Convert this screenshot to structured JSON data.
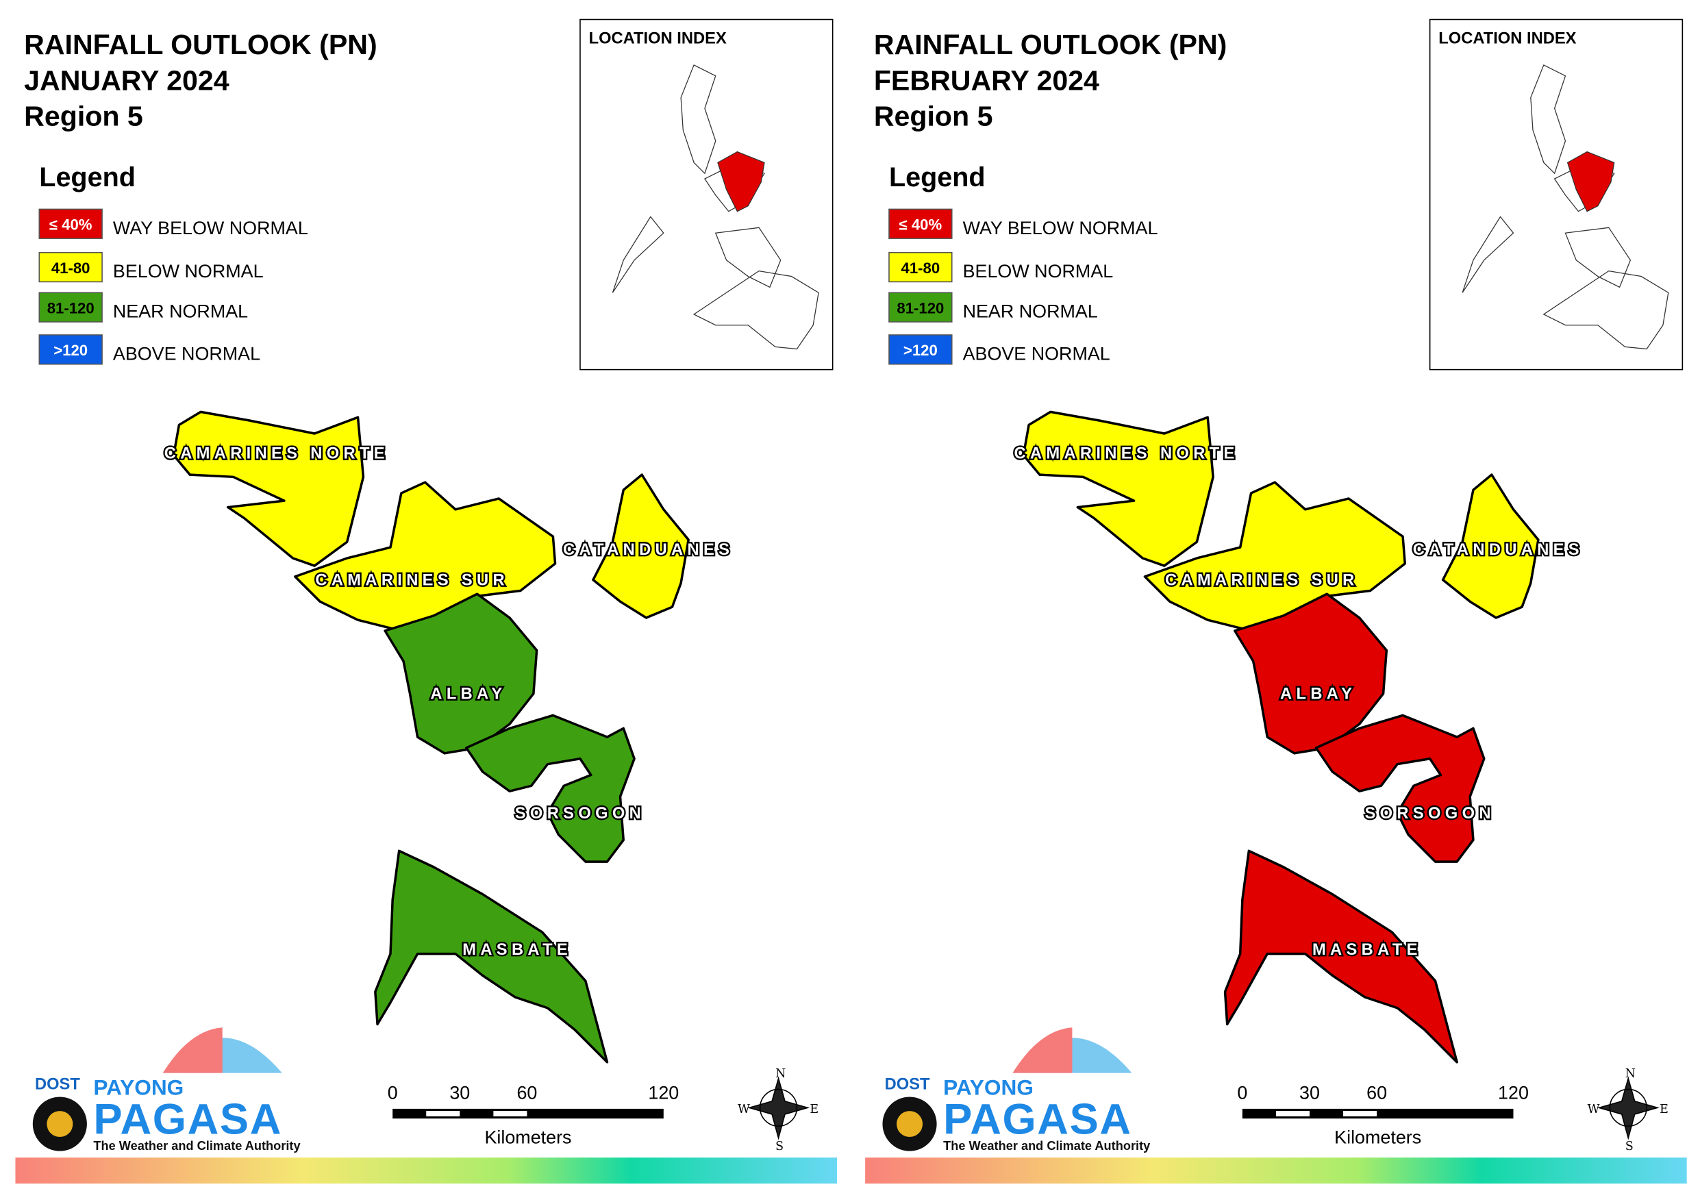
{
  "panels": [
    {
      "title": [
        "RAINFALL OUTLOOK (PN)",
        "JANUARY 2024",
        "Region 5"
      ],
      "legend": {
        "title": "Legend",
        "items": [
          {
            "key": "≤ 40%",
            "label": "WAY BELOW NORMAL",
            "color": "#e00000"
          },
          {
            "key": "41-80",
            "label": "BELOW NORMAL",
            "color": "#ffff00"
          },
          {
            "key": "81-120",
            "label": "NEAR NORMAL",
            "color": "#3ea010"
          },
          {
            "key": ">120",
            "label": "ABOVE NORMAL",
            "color": "#0a5ce6"
          }
        ]
      },
      "location_index": {
        "title": "LOCATION INDEX"
      },
      "provinces": [
        {
          "name": "CAMARINES NORTE",
          "color": "#ffff00"
        },
        {
          "name": "CAMARINES SUR",
          "color": "#ffff00"
        },
        {
          "name": "CATANDUANES",
          "color": "#ffff00"
        },
        {
          "name": "ALBAY",
          "color": "#3ea010"
        },
        {
          "name": "SORSOGON",
          "color": "#3ea010"
        },
        {
          "name": "MASBATE",
          "color": "#3ea010"
        }
      ],
      "scale": {
        "ticks": [
          "0",
          "30",
          "60",
          "120"
        ],
        "unit": "Kilometers"
      },
      "compass": [
        "N",
        "E",
        "S",
        "W"
      ],
      "logo": {
        "agency": "DOST",
        "line1": "PAYONG",
        "line2": "PAGASA",
        "tagline": "The Weather and Climate Authority"
      }
    },
    {
      "title": [
        "RAINFALL OUTLOOK (PN)",
        "FEBRUARY 2024",
        "Region 5"
      ],
      "legend": {
        "title": "Legend",
        "items": [
          {
            "key": "≤ 40%",
            "label": "WAY BELOW NORMAL",
            "color": "#e00000"
          },
          {
            "key": "41-80",
            "label": "BELOW NORMAL",
            "color": "#ffff00"
          },
          {
            "key": "81-120",
            "label": "NEAR NORMAL",
            "color": "#3ea010"
          },
          {
            "key": ">120",
            "label": "ABOVE NORMAL",
            "color": "#0a5ce6"
          }
        ]
      },
      "location_index": {
        "title": "LOCATION INDEX"
      },
      "provinces": [
        {
          "name": "CAMARINES NORTE",
          "color": "#ffff00"
        },
        {
          "name": "CAMARINES SUR",
          "color": "#ffff00"
        },
        {
          "name": "CATANDUANES",
          "color": "#ffff00"
        },
        {
          "name": "ALBAY",
          "color": "#e00000"
        },
        {
          "name": "SORSOGON",
          "color": "#e00000"
        },
        {
          "name": "MASBATE",
          "color": "#e00000"
        }
      ],
      "scale": {
        "ticks": [
          "0",
          "30",
          "60",
          "120"
        ],
        "unit": "Kilometers"
      },
      "compass": [
        "N",
        "E",
        "S",
        "W"
      ],
      "logo": {
        "agency": "DOST",
        "line1": "PAYONG",
        "line2": "PAGASA",
        "tagline": "The Weather and Climate Authority"
      }
    }
  ]
}
